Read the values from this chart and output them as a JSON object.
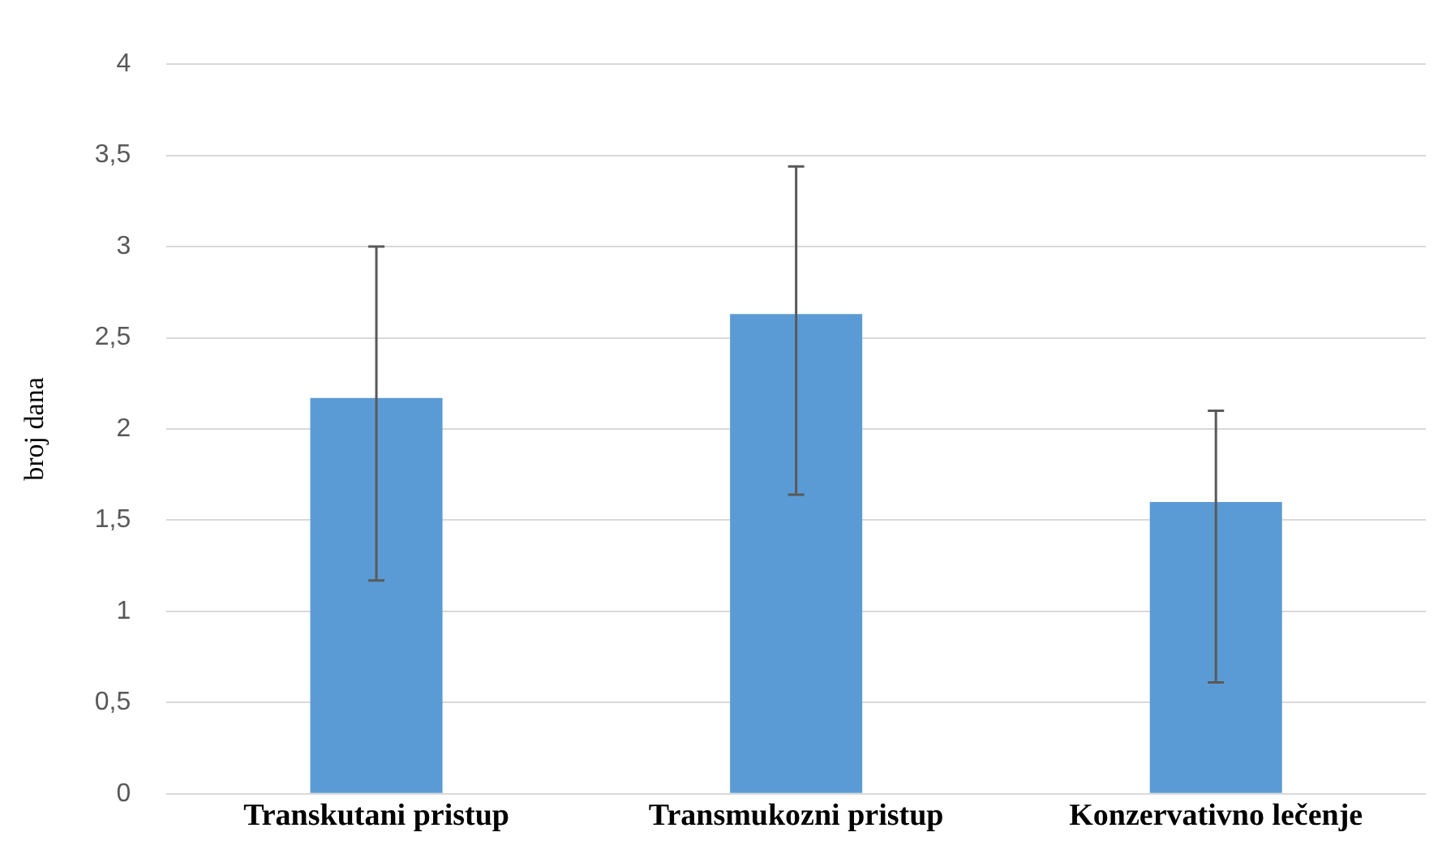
{
  "chart_data": {
    "type": "bar",
    "ylabel": "broj dana",
    "categories": [
      "Transkutani pristup",
      "Transmukozni pristup",
      "Konzervativno lečenje"
    ],
    "values": [
      2.17,
      2.63,
      1.6
    ],
    "color": "#5b9bd5",
    "errors": [
      [
        1.17,
        3.0
      ],
      [
        1.64,
        3.44
      ],
      [
        0.61,
        2.1
      ]
    ],
    "ylim": [
      0,
      4
    ],
    "yticks": [
      0,
      {
        "value": 0.5,
        "label": "0,5"
      },
      1,
      {
        "value": 1.5,
        "label": "1,5"
      },
      2,
      {
        "value": 2.5,
        "label": "2,5"
      },
      3,
      {
        "value": 3.5,
        "label": "3,5"
      },
      4
    ],
    "grid": "y",
    "legend": false
  }
}
